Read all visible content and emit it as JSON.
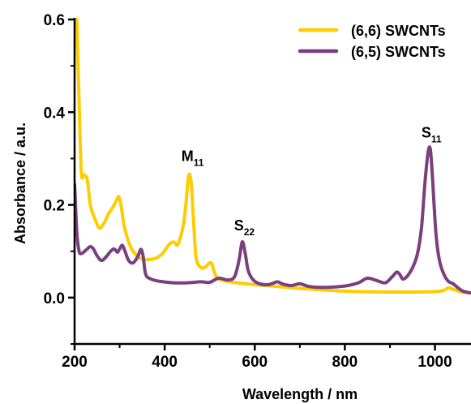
{
  "chart_data": {
    "type": "line",
    "title": "",
    "xlabel": "Wavelength / nm",
    "ylabel": "Absorbance / a.u.",
    "xlim": [
      200,
      1080
    ],
    "ylim": [
      -0.1,
      0.6
    ],
    "xticks": [
      200,
      400,
      600,
      800,
      1000
    ],
    "yticks": [
      0.0,
      0.2,
      0.4,
      0.6
    ],
    "xtick_labels": [
      "200",
      "400",
      "600",
      "800",
      "1000"
    ],
    "ytick_labels": [
      "0.0",
      "0.2",
      "0.4",
      "0.6"
    ],
    "grid": false,
    "legend_position": "top-right",
    "series": [
      {
        "name": "(6,6) SWCNTs",
        "color": "#FFCC00",
        "x": [
          205,
          210,
          215,
          220,
          228,
          235,
          245,
          255,
          265,
          275,
          285,
          293,
          298,
          303,
          310,
          320,
          330,
          345,
          360,
          380,
          395,
          410,
          420,
          428,
          435,
          442,
          448,
          452,
          456,
          460,
          465,
          470,
          480,
          490,
          500,
          505,
          512,
          520,
          540,
          560,
          600,
          650,
          700,
          800,
          900,
          1000,
          1020,
          1030,
          1040,
          1060,
          1080
        ],
        "y": [
          0.6,
          0.42,
          0.27,
          0.265,
          0.255,
          0.2,
          0.17,
          0.15,
          0.16,
          0.18,
          0.195,
          0.21,
          0.218,
          0.2,
          0.155,
          0.12,
          0.1,
          0.085,
          0.082,
          0.085,
          0.095,
          0.115,
          0.12,
          0.113,
          0.13,
          0.16,
          0.21,
          0.255,
          0.265,
          0.235,
          0.15,
          0.085,
          0.065,
          0.066,
          0.075,
          0.072,
          0.05,
          0.04,
          0.035,
          0.032,
          0.028,
          0.024,
          0.02,
          0.014,
          0.012,
          0.013,
          0.016,
          0.021,
          0.018,
          0.012,
          0.01
        ]
      },
      {
        "name": "(6,5) SWCNTs",
        "color": "#7B3F7E",
        "x": [
          200,
          205,
          210,
          215,
          220,
          228,
          235,
          242,
          250,
          260,
          270,
          280,
          288,
          295,
          300,
          306,
          312,
          320,
          330,
          340,
          347,
          352,
          358,
          370,
          390,
          420,
          450,
          480,
          500,
          520,
          540,
          555,
          565,
          572,
          578,
          585,
          595,
          610,
          630,
          650,
          660,
          680,
          700,
          720,
          750,
          800,
          830,
          850,
          870,
          890,
          905,
          915,
          922,
          930,
          945,
          960,
          970,
          978,
          985,
          990,
          995,
          1002,
          1010,
          1020,
          1030,
          1040,
          1060,
          1080
        ],
        "y": [
          0.245,
          0.14,
          0.1,
          0.095,
          0.098,
          0.105,
          0.11,
          0.105,
          0.09,
          0.08,
          0.088,
          0.1,
          0.105,
          0.098,
          0.105,
          0.113,
          0.1,
          0.08,
          0.075,
          0.088,
          0.104,
          0.09,
          0.05,
          0.04,
          0.035,
          0.032,
          0.032,
          0.034,
          0.033,
          0.042,
          0.038,
          0.045,
          0.08,
          0.12,
          0.1,
          0.06,
          0.04,
          0.03,
          0.028,
          0.034,
          0.03,
          0.026,
          0.03,
          0.024,
          0.022,
          0.025,
          0.032,
          0.042,
          0.037,
          0.032,
          0.045,
          0.055,
          0.05,
          0.04,
          0.055,
          0.09,
          0.15,
          0.25,
          0.315,
          0.318,
          0.25,
          0.14,
          0.08,
          0.05,
          0.035,
          0.03,
          0.015,
          0.01
        ]
      }
    ],
    "annotations": [
      {
        "label": "M",
        "sub": "11",
        "x": 455,
        "y": 0.295
      },
      {
        "label": "S",
        "sub": "22",
        "x": 572,
        "y": 0.145
      },
      {
        "label": "S",
        "sub": "11",
        "x": 988,
        "y": 0.345
      }
    ]
  }
}
